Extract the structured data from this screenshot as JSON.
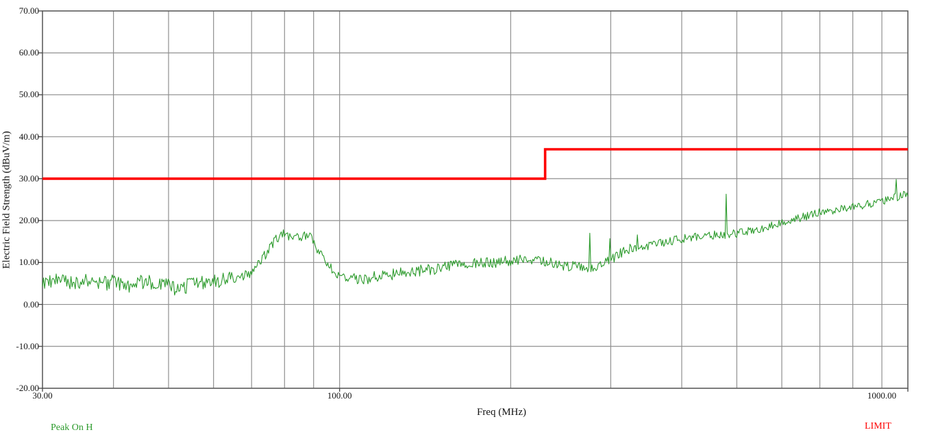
{
  "chart_data": {
    "type": "line",
    "title": "",
    "xlabel": "Freq (MHz)",
    "ylabel": "Electric Field Strength (dBuV/m)",
    "x_scale": "log",
    "xlim": [
      30,
      1000
    ],
    "ylim": [
      -20,
      70
    ],
    "grid": true,
    "grid_color": "#8f8f8f",
    "border_color": "#5a5a5a",
    "tick_color": "#444444",
    "label_color": "#141414",
    "background": "#ffffff",
    "x_gridlines": [
      30,
      40,
      50,
      60,
      70,
      80,
      90,
      100,
      200,
      300,
      400,
      500,
      600,
      700,
      800,
      900,
      1000
    ],
    "x_ticks": [
      {
        "v": 30,
        "label": "30.00"
      },
      {
        "v": 100,
        "label": "100.00"
      },
      {
        "v": 1000,
        "label": "1000.00"
      }
    ],
    "y_ticks": [
      {
        "v": 70,
        "label": "70.00"
      },
      {
        "v": 60,
        "label": "60.00"
      },
      {
        "v": 50,
        "label": "50.00"
      },
      {
        "v": 40,
        "label": "40.00"
      },
      {
        "v": 30,
        "label": "30.00"
      },
      {
        "v": 20,
        "label": "20.00"
      },
      {
        "v": 10,
        "label": "10.00"
      },
      {
        "v": 0,
        "label": "0.00"
      },
      {
        "v": -10,
        "label": "-10.00"
      },
      {
        "v": -20,
        "label": "-20.00"
      }
    ],
    "legend_position": "below-left-and-right",
    "series": [
      {
        "name": "Peak On H",
        "color": "#2b9a2b",
        "type": "noisy-line",
        "units": {
          "x": "MHz",
          "y": "dBuV/m"
        },
        "envelope": [
          [
            30,
            5.0
          ],
          [
            32,
            5.8
          ],
          [
            34,
            5.2
          ],
          [
            36,
            5.6
          ],
          [
            38,
            4.8
          ],
          [
            40,
            5.4
          ],
          [
            42,
            4.1
          ],
          [
            44,
            5.2
          ],
          [
            46,
            5.6
          ],
          [
            48,
            5.0
          ],
          [
            50,
            4.4
          ],
          [
            52,
            3.3
          ],
          [
            54,
            4.6
          ],
          [
            56,
            5.2
          ],
          [
            58,
            5.4
          ],
          [
            60,
            5.6
          ],
          [
            63,
            6.0
          ],
          [
            66,
            6.3
          ],
          [
            69,
            7.1
          ],
          [
            71,
            8.6
          ],
          [
            73,
            10.6
          ],
          [
            75,
            13.1
          ],
          [
            77,
            15.4
          ],
          [
            79,
            16.7
          ],
          [
            81,
            16.5
          ],
          [
            83,
            15.8
          ],
          [
            85,
            16.1
          ],
          [
            87,
            16.7
          ],
          [
            89,
            15.7
          ],
          [
            91,
            13.7
          ],
          [
            93,
            11.7
          ],
          [
            95,
            9.8
          ],
          [
            97,
            8.3
          ],
          [
            100,
            6.9
          ],
          [
            104,
            6.1
          ],
          [
            108,
            5.9
          ],
          [
            113,
            6.3
          ],
          [
            120,
            6.9
          ],
          [
            128,
            7.4
          ],
          [
            137,
            7.9
          ],
          [
            147,
            8.5
          ],
          [
            158,
            9.1
          ],
          [
            170,
            9.6
          ],
          [
            183,
            10.0
          ],
          [
            197,
            10.4
          ],
          [
            210,
            10.5
          ],
          [
            224,
            10.4
          ],
          [
            238,
            9.8
          ],
          [
            252,
            9.2
          ],
          [
            265,
            8.7
          ],
          [
            272,
            8.6
          ],
          [
            280,
            8.9
          ],
          [
            290,
            9.6
          ],
          [
            300,
            10.8
          ],
          [
            310,
            11.8
          ],
          [
            320,
            13.0
          ],
          [
            335,
            13.6
          ],
          [
            355,
            14.2
          ],
          [
            378,
            14.9
          ],
          [
            400,
            15.7
          ],
          [
            420,
            16.1
          ],
          [
            440,
            16.4
          ],
          [
            465,
            16.6
          ],
          [
            490,
            16.8
          ],
          [
            515,
            17.2
          ],
          [
            540,
            17.7
          ],
          [
            570,
            18.5
          ],
          [
            600,
            19.7
          ],
          [
            630,
            20.4
          ],
          [
            665,
            21.1
          ],
          [
            700,
            21.9
          ],
          [
            740,
            22.5
          ],
          [
            780,
            23.1
          ],
          [
            820,
            23.6
          ],
          [
            860,
            24.1
          ],
          [
            900,
            24.7
          ],
          [
            940,
            25.3
          ],
          [
            970,
            25.8
          ],
          [
            1000,
            26.5
          ]
        ],
        "noise_db_segments": [
          [
            30,
            65,
            1.8
          ],
          [
            65,
            100,
            1.2
          ],
          [
            100,
            200,
            1.4
          ],
          [
            200,
            330,
            1.3
          ],
          [
            330,
            1000,
            1.0
          ]
        ],
        "spikes": [
          [
            276,
            17.0
          ],
          [
            299,
            15.7
          ],
          [
            334,
            16.6
          ],
          [
            478,
            26.3
          ],
          [
            953,
            29.8
          ]
        ]
      },
      {
        "name": "LIMIT",
        "color": "#fe0000",
        "type": "step-line",
        "units": {
          "x": "MHz",
          "y": "dBuV/m"
        },
        "points": [
          [
            30,
            30
          ],
          [
            230,
            30
          ],
          [
            230,
            37
          ],
          [
            1000,
            37
          ]
        ]
      }
    ]
  }
}
